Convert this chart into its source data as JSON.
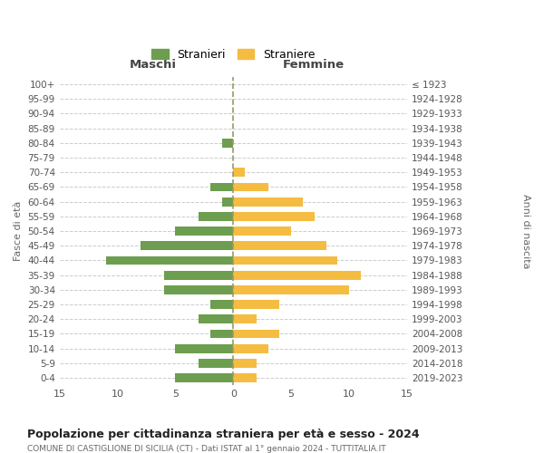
{
  "age_groups": [
    "0-4",
    "5-9",
    "10-14",
    "15-19",
    "20-24",
    "25-29",
    "30-34",
    "35-39",
    "40-44",
    "45-49",
    "50-54",
    "55-59",
    "60-64",
    "65-69",
    "70-74",
    "75-79",
    "80-84",
    "85-89",
    "90-94",
    "95-99",
    "100+"
  ],
  "birth_years": [
    "2019-2023",
    "2014-2018",
    "2009-2013",
    "2004-2008",
    "1999-2003",
    "1994-1998",
    "1989-1993",
    "1984-1988",
    "1979-1983",
    "1974-1978",
    "1969-1973",
    "1964-1968",
    "1959-1963",
    "1954-1958",
    "1949-1953",
    "1944-1948",
    "1939-1943",
    "1934-1938",
    "1929-1933",
    "1924-1928",
    "≤ 1923"
  ],
  "males": [
    5,
    3,
    5,
    2,
    3,
    2,
    6,
    6,
    11,
    8,
    5,
    3,
    1,
    2,
    0,
    0,
    1,
    0,
    0,
    0,
    0
  ],
  "females": [
    2,
    2,
    3,
    4,
    2,
    4,
    10,
    11,
    9,
    8,
    5,
    7,
    6,
    3,
    1,
    0,
    0,
    0,
    0,
    0,
    0
  ],
  "male_color": "#6d9e4f",
  "female_color": "#f5bc42",
  "title": "Popolazione per cittadinanza straniera per età e sesso - 2024",
  "subtitle": "COMUNE DI CASTIGLIONE DI SICILIA (CT) - Dati ISTAT al 1° gennaio 2024 - TUTTITALIA.IT",
  "ylabel_left": "Fasce di età",
  "ylabel_right": "Anni di nascita",
  "header_left": "Maschi",
  "header_right": "Femmine",
  "legend_male": "Stranieri",
  "legend_female": "Straniere",
  "xlim": 15,
  "background_color": "#ffffff",
  "grid_color": "#cccccc",
  "dashed_line_color": "#999966"
}
